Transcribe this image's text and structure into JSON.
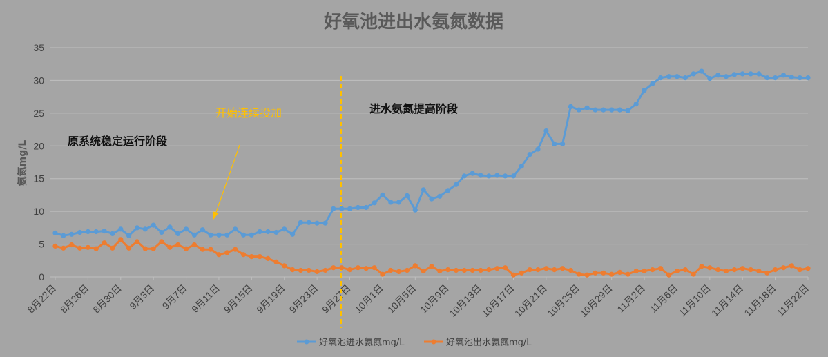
{
  "colors": {
    "background": "#a5a5a5",
    "inflow": "#5b9bd5",
    "outflow": "#ed7d31",
    "annotation_gold": "#ffc000",
    "gridline": "#bfbfbf"
  },
  "chart_data": {
    "type": "line",
    "title": "好氧池进出水氨氮数据",
    "ylabel": "氨氮mg/L",
    "xlabel": "",
    "ylim": [
      0,
      35
    ],
    "yticks": [
      0,
      5,
      10,
      15,
      20,
      25,
      30,
      35
    ],
    "grid": true,
    "legend_position": "bottom",
    "x_start": "8月22日",
    "x_end": "11月22日",
    "xtick_labels": [
      "8月22日",
      "8月26日",
      "8月30日",
      "9月3日",
      "9月7日",
      "9月11日",
      "9月15日",
      "9月19日",
      "9月23日",
      "9月27日",
      "10月1日",
      "10月5日",
      "10月9日",
      "10月13日",
      "10月17日",
      "10月21日",
      "10月25日",
      "10月29日",
      "11月2日",
      "11月6日",
      "11月10日",
      "11月14日",
      "11月18日",
      "11月22日"
    ],
    "series": [
      {
        "name": "好氧池进水氨氮mg/L",
        "color": "#5b9bd5",
        "values": [
          6.7,
          6.3,
          6.5,
          6.8,
          6.9,
          6.9,
          7.0,
          6.6,
          7.3,
          6.3,
          7.5,
          7.3,
          7.9,
          6.8,
          7.6,
          6.6,
          7.3,
          6.4,
          7.2,
          6.4,
          6.4,
          6.4,
          7.3,
          6.4,
          6.4,
          6.9,
          6.9,
          6.8,
          7.3,
          6.5,
          8.3,
          8.3,
          8.2,
          8.2,
          10.4,
          10.4,
          10.4,
          10.6,
          10.6,
          11.3,
          12.5,
          11.4,
          11.4,
          12.4,
          10.2,
          13.3,
          11.9,
          12.3,
          13.2,
          14.1,
          15.4,
          15.8,
          15.5,
          15.4,
          15.5,
          15.4,
          15.4,
          16.9,
          18.7,
          19.5,
          22.3,
          20.3,
          20.3,
          26.0,
          25.5,
          25.8,
          25.5,
          25.5,
          25.5,
          25.5,
          25.4,
          26.4,
          28.5,
          29.5,
          30.4,
          30.6,
          30.6,
          30.4,
          31.0,
          31.4,
          30.3,
          30.8,
          30.6,
          30.9,
          31.0,
          31.0,
          31.0,
          30.4,
          30.4,
          30.8,
          30.5,
          30.4,
          30.4
        ]
      },
      {
        "name": "好氧池出水氨氮mg/L",
        "color": "#ed7d31",
        "values": [
          4.7,
          4.4,
          4.9,
          4.4,
          4.5,
          4.3,
          5.2,
          4.4,
          5.7,
          4.4,
          5.4,
          4.3,
          4.3,
          5.4,
          4.5,
          4.9,
          4.3,
          4.9,
          4.2,
          4.2,
          3.4,
          3.7,
          4.2,
          3.4,
          3.1,
          3.1,
          2.8,
          2.3,
          1.7,
          1.1,
          1.0,
          1.0,
          0.8,
          1.0,
          1.4,
          1.4,
          1.1,
          1.4,
          1.3,
          1.4,
          0.4,
          1.0,
          0.8,
          1.0,
          1.7,
          0.9,
          1.6,
          0.9,
          1.1,
          1.0,
          1.0,
          1.0,
          1.0,
          1.1,
          1.3,
          1.4,
          0.3,
          0.6,
          1.1,
          1.1,
          1.3,
          1.1,
          1.3,
          1.0,
          0.4,
          0.3,
          0.6,
          0.6,
          0.4,
          0.7,
          0.4,
          0.9,
          0.9,
          1.1,
          1.3,
          0.3,
          0.9,
          1.1,
          0.4,
          1.6,
          1.4,
          1.1,
          0.9,
          1.1,
          1.3,
          1.1,
          0.9,
          0.6,
          1.1,
          1.4,
          1.7,
          1.1,
          1.3
        ]
      }
    ],
    "annotations": [
      {
        "text": "原系统稳定运行阶段",
        "style": "dark"
      },
      {
        "text": "开始连续投加",
        "style": "gold"
      },
      {
        "text": "进水氨氮提高阶段",
        "style": "dark"
      }
    ]
  }
}
